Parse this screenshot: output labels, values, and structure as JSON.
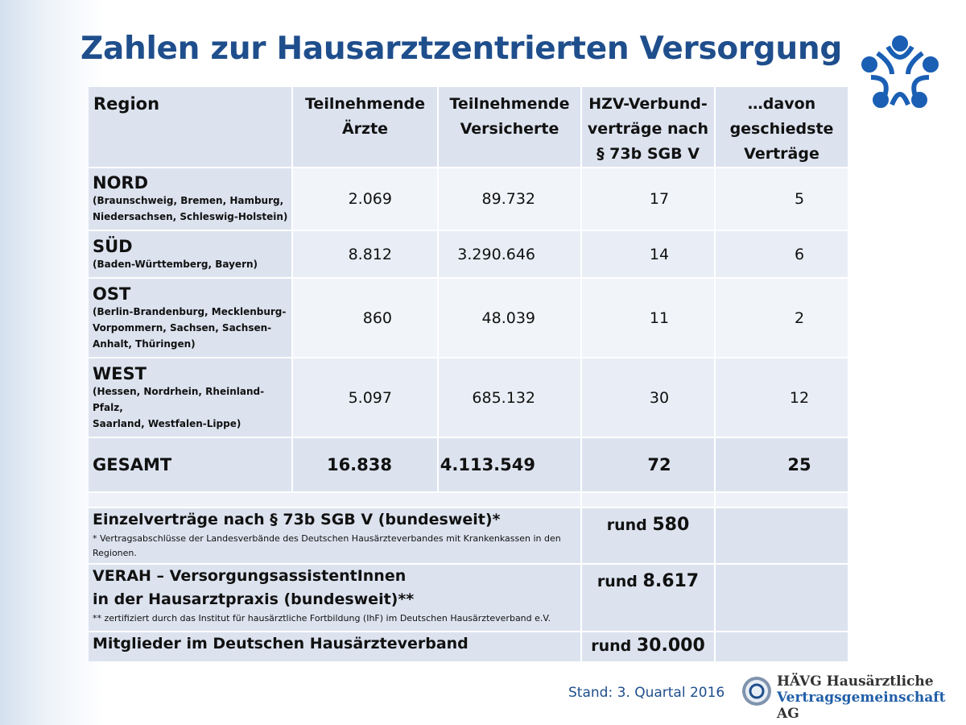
{
  "title": "Zahlen zur Hausarztzentrierten Versorgung",
  "table": {
    "header": [
      "Region",
      "Teilnehmende\nÄrzte",
      "Teilnehmende\nVersicherte",
      "HZV-Verbund-\nverträge nach\n§ 73b SGB V",
      "…davon\ngeschiedste\nVerträge"
    ],
    "rows": [
      {
        "region": "NORD",
        "detail": "(Braunschweig, Bremen, Hamburg,\nNiedersachsen, Schleswig-Holstein)",
        "values": [
          "2.069",
          "89.732",
          "17",
          "5"
        ]
      },
      {
        "region": "SÜD",
        "detail": "(Baden-Württemberg, Bayern)",
        "values": [
          "8.812",
          "3.290.646",
          "14",
          "6"
        ]
      },
      {
        "region": "OST",
        "detail": "(Berlin-Brandenburg, Mecklenburg-\nVorpommern, Sachsen, Sachsen-\nAnhalt, Thüringen)",
        "values": [
          "860",
          "48.039",
          "11",
          "2"
        ]
      },
      {
        "region": "WEST",
        "detail": "(Hessen, Nordrhein, Rheinland-Pfalz,\nSaarland, Westfalen-Lippe)",
        "values": [
          "5.097",
          "685.132",
          "30",
          "12"
        ]
      }
    ],
    "total": {
      "region": "GESAMT",
      "values": [
        "16.838",
        "4.113.549",
        "72",
        "25"
      ]
    }
  },
  "extras": [
    {
      "label": "Einzelverträge nach § 73b SGB V (bundesweit)*",
      "note": "* Vertragsabschlüsse der Landesverbände des Deutschen Hausärzteverbandes mit Krankenkassen in den\nRegionen.",
      "prefix": "rund",
      "value": "580"
    },
    {
      "label": "VERAH – VersorgungsassistentInnen\nin der Hausarztpraxis (bundesweit)**",
      "note": "** zertifiziert durch das Institut für hausärztliche Fortbildung (IhF) im Deutschen Hausärzteverband e.V.",
      "prefix": "rund",
      "value": "8.617"
    },
    {
      "label": "Mitglieder im Deutschen Hausärzteverband",
      "prefix": "rund",
      "value": "30.000"
    }
  ],
  "footer": {
    "stand": "Stand:  3. Quartal 2016",
    "logo_line1": "HÄVG Hausärztliche",
    "logo_line2": "Vertragsgemeinschaft",
    "logo_suffix": "AG"
  }
}
